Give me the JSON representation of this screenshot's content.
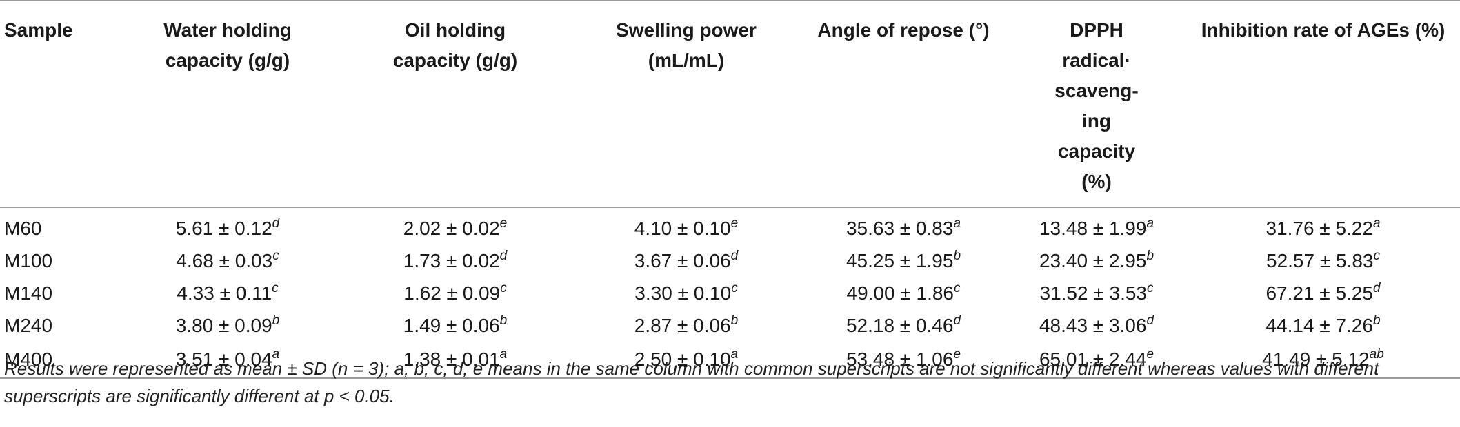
{
  "table": {
    "headers": [
      "Sample",
      "Water holding\ncapacity (g/g)",
      "Oil holding\ncapacity (g/g)",
      "Swelling power\n(mL/mL)",
      "Angle of repose (°)",
      "DPPH\nradical·\nscaveng-\ning\ncapacity\n(%)",
      "Inhibition rate of AGEs (%)"
    ],
    "rows": [
      {
        "sample": "M60",
        "cells": [
          {
            "v": "5.61 ± 0.12",
            "s": "d"
          },
          {
            "v": "2.02 ± 0.02",
            "s": "e"
          },
          {
            "v": "4.10 ± 0.10",
            "s": "e"
          },
          {
            "v": "35.63 ± 0.83",
            "s": "a"
          },
          {
            "v": "13.48 ± 1.99",
            "s": "a"
          },
          {
            "v": "31.76 ± 5.22",
            "s": "a"
          }
        ]
      },
      {
        "sample": "M100",
        "cells": [
          {
            "v": "4.68 ± 0.03",
            "s": "c"
          },
          {
            "v": "1.73 ± 0.02",
            "s": "d"
          },
          {
            "v": "3.67 ± 0.06",
            "s": "d"
          },
          {
            "v": "45.25 ± 1.95",
            "s": "b"
          },
          {
            "v": "23.40 ± 2.95",
            "s": "b"
          },
          {
            "v": "52.57 ± 5.83",
            "s": "c"
          }
        ]
      },
      {
        "sample": "M140",
        "cells": [
          {
            "v": "4.33 ± 0.11",
            "s": "c"
          },
          {
            "v": "1.62 ± 0.09",
            "s": "c"
          },
          {
            "v": "3.30 ± 0.10",
            "s": "c"
          },
          {
            "v": "49.00 ± 1.86",
            "s": "c"
          },
          {
            "v": "31.52 ± 3.53",
            "s": "c"
          },
          {
            "v": "67.21 ± 5.25",
            "s": "d"
          }
        ]
      },
      {
        "sample": "M240",
        "cells": [
          {
            "v": "3.80 ± 0.09",
            "s": "b"
          },
          {
            "v": "1.49 ± 0.06",
            "s": "b"
          },
          {
            "v": "2.87 ± 0.06",
            "s": "b"
          },
          {
            "v": "52.18 ± 0.46",
            "s": "d"
          },
          {
            "v": "48.43 ± 3.06",
            "s": "d"
          },
          {
            "v": "44.14 ± 7.26",
            "s": "b"
          }
        ]
      },
      {
        "sample": "M400",
        "cells": [
          {
            "v": "3.51 ± 0.04",
            "s": "a"
          },
          {
            "v": "1.38 ± 0.01",
            "s": "a"
          },
          {
            "v": "2.50 ± 0.10",
            "s": "a"
          },
          {
            "v": "53.48 ± 1.06",
            "s": "e"
          },
          {
            "v": "65.01 ± 2.44",
            "s": "e"
          },
          {
            "v": "41.49 ± 5.12",
            "s": "ab"
          }
        ]
      }
    ]
  },
  "footnote": "Results were represented as mean ± SD (n = 3); a, b, c, d, e means in the same column with common superscripts are not significantly different whereas values with different superscripts are significantly different at p < 0.05."
}
